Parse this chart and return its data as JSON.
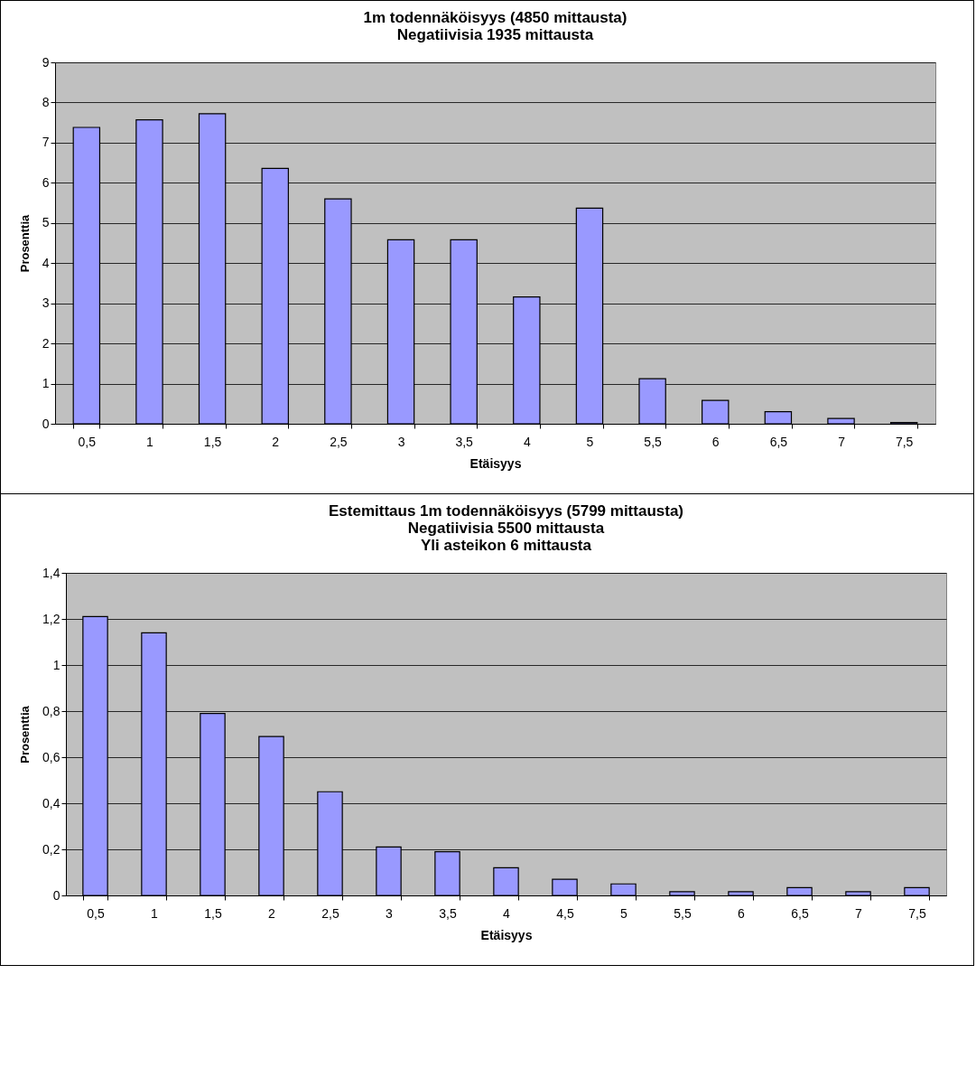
{
  "chart_data": [
    {
      "type": "bar",
      "title": "1m todennäköisyys (4850 mittausta)\nNegatiivisia 1935 mittausta",
      "xlabel": "Etäisyys",
      "ylabel": "Prosenttia",
      "categories": [
        "0,5",
        "1",
        "1,5",
        "2",
        "2,5",
        "3",
        "3,5",
        "4",
        "5",
        "5,5",
        "6",
        "6,5",
        "7",
        "7,5"
      ],
      "values": [
        7.38,
        7.57,
        7.72,
        6.36,
        5.6,
        4.58,
        4.58,
        3.16,
        5.37,
        1.12,
        0.58,
        0.3,
        0.13,
        0.03
      ],
      "color": "#9999ff",
      "ylim": [
        0,
        9
      ],
      "yticks": [
        0,
        1,
        2,
        3,
        4,
        5,
        6,
        7,
        8,
        9
      ],
      "grid": "y"
    },
    {
      "type": "bar",
      "title": "Estemittaus 1m todennäköisyys (5799 mittausta)\nNegatiivisia 5500 mittausta\nYli asteikon 6 mittausta",
      "xlabel": "Etäisyys",
      "ylabel": "Prosenttia",
      "categories": [
        "0,5",
        "1",
        "1,5",
        "2",
        "2,5",
        "3",
        "3,5",
        "4",
        "4,5",
        "5",
        "5,5",
        "6",
        "6,5",
        "7",
        "7,5"
      ],
      "values": [
        1.21,
        1.14,
        0.79,
        0.69,
        0.45,
        0.21,
        0.19,
        0.12,
        0.07,
        0.05,
        0.016,
        0.016,
        0.034,
        0.016,
        0.034
      ],
      "color": "#9999ff",
      "ylim": [
        0,
        1.4
      ],
      "yticks": [
        0,
        {
          "value": 0.2,
          "label": "0,2"
        },
        {
          "value": 0.4,
          "label": "0,4"
        },
        {
          "value": 0.6,
          "label": "0,6"
        },
        {
          "value": 0.8,
          "label": "0,8"
        },
        1,
        {
          "value": 1.2,
          "label": "1,2"
        },
        {
          "value": 1.4,
          "label": "1,4"
        }
      ],
      "grid": "y"
    }
  ]
}
